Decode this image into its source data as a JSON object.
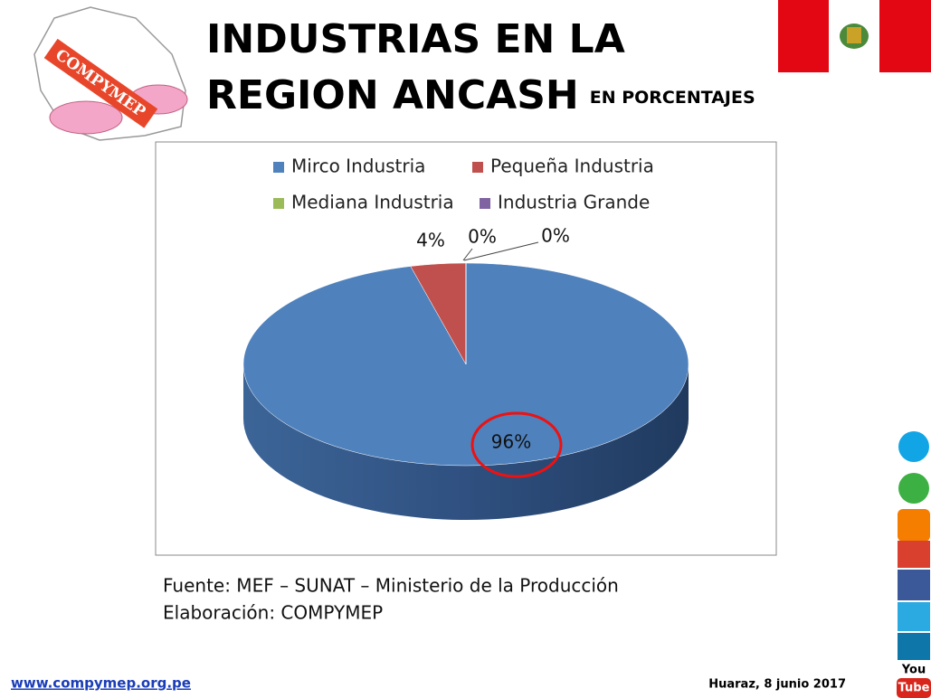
{
  "logo": {
    "text": "COMPYMEP"
  },
  "chart_data": {
    "type": "pie",
    "title": "INDUSTRIAS EN LA REGION ANCASH",
    "subtitle": "EN PORCENTAJES",
    "categories": [
      "Mirco Industria",
      "Pequeña Industria",
      "Mediana Industria",
      "Industria Grande"
    ],
    "values": [
      96,
      4,
      0,
      0
    ],
    "value_labels": [
      "96%",
      "4%",
      "0%",
      "0%"
    ],
    "colors": [
      "#4f81bd",
      "#c0504d",
      "#9bbb59",
      "#8064a2"
    ],
    "legend": "top"
  },
  "source": {
    "line1": "Fuente: MEF – SUNAT – Ministerio de la Producción",
    "line2": "Elaboración: COMPYMEP"
  },
  "footer": {
    "url": "www.compymep.org.pe",
    "date": "Huaraz, 8 junio 2017"
  },
  "social": {
    "youtube_top": "You",
    "youtube_bottom": "Tube"
  }
}
